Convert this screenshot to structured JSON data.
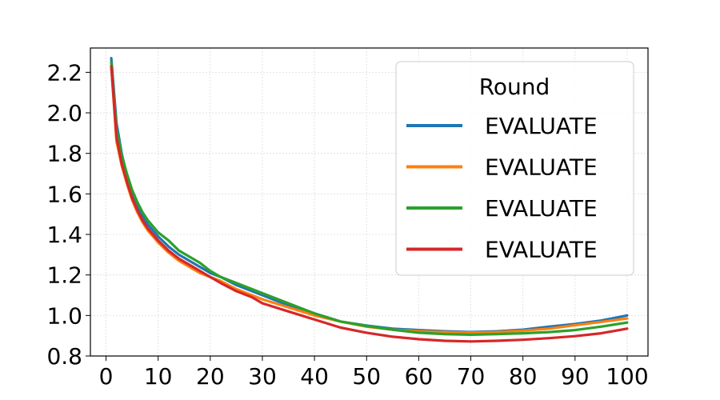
{
  "chart_data": {
    "type": "line",
    "title": "",
    "xlabel": "",
    "ylabel": "",
    "xlim": [
      -3,
      104
    ],
    "ylim": [
      0.8,
      2.32
    ],
    "xticks": [
      0,
      10,
      20,
      30,
      40,
      50,
      60,
      70,
      80,
      90,
      100
    ],
    "xtick_labels": [
      "0",
      "10",
      "20",
      "30",
      "40",
      "50",
      "60",
      "70",
      "80",
      "90",
      "100"
    ],
    "yticks": [
      0.8,
      1.0,
      1.2,
      1.4,
      1.6,
      1.8,
      2.0,
      2.2
    ],
    "ytick_labels": [
      "0.8",
      "1.0",
      "1.2",
      "1.4",
      "1.6",
      "1.8",
      "2.0",
      "2.2"
    ],
    "grid": true,
    "legend": {
      "title": "Round",
      "placement": "top-right"
    },
    "series": [
      {
        "name": "EVALUATE",
        "color": "#1f77b4",
        "x": [
          1,
          2,
          3,
          4,
          5,
          6,
          7,
          8,
          10,
          12,
          14,
          16,
          18,
          20,
          22,
          25,
          28,
          30,
          35,
          40,
          45,
          50,
          55,
          60,
          65,
          70,
          75,
          80,
          85,
          90,
          95,
          100
        ],
        "y": [
          2.27,
          1.95,
          1.8,
          1.69,
          1.6,
          1.54,
          1.49,
          1.45,
          1.39,
          1.34,
          1.3,
          1.27,
          1.24,
          1.21,
          1.19,
          1.15,
          1.12,
          1.1,
          1.05,
          1.01,
          0.97,
          0.95,
          0.935,
          0.928,
          0.922,
          0.918,
          0.922,
          0.93,
          0.945,
          0.958,
          0.975,
          1.0
        ]
      },
      {
        "name": "EVALUATE",
        "color": "#ff7f0e",
        "x": [
          1,
          2,
          3,
          4,
          5,
          6,
          7,
          8,
          10,
          12,
          14,
          16,
          18,
          20,
          22,
          25,
          28,
          30,
          35,
          40,
          45,
          50,
          55,
          60,
          65,
          70,
          75,
          80,
          85,
          90,
          95,
          100
        ],
        "y": [
          2.23,
          1.86,
          1.74,
          1.65,
          1.57,
          1.51,
          1.46,
          1.42,
          1.36,
          1.31,
          1.27,
          1.24,
          1.21,
          1.19,
          1.17,
          1.13,
          1.1,
          1.08,
          1.04,
          1.0,
          0.97,
          0.945,
          0.93,
          0.922,
          0.918,
          0.915,
          0.918,
          0.925,
          0.935,
          0.952,
          0.968,
          0.985
        ]
      },
      {
        "name": "EVALUATE",
        "color": "#2ca02c",
        "x": [
          1,
          2,
          3,
          4,
          5,
          6,
          7,
          8,
          10,
          12,
          14,
          16,
          18,
          20,
          22,
          25,
          28,
          30,
          35,
          40,
          45,
          50,
          55,
          60,
          65,
          70,
          75,
          80,
          85,
          90,
          95,
          100
        ],
        "y": [
          2.25,
          1.92,
          1.79,
          1.7,
          1.62,
          1.56,
          1.51,
          1.47,
          1.41,
          1.37,
          1.32,
          1.29,
          1.26,
          1.22,
          1.19,
          1.16,
          1.13,
          1.11,
          1.06,
          1.01,
          0.97,
          0.948,
          0.93,
          0.915,
          0.908,
          0.905,
          0.908,
          0.912,
          0.918,
          0.928,
          0.945,
          0.965
        ]
      },
      {
        "name": "EVALUATE",
        "color": "#d62728",
        "x": [
          1,
          2,
          3,
          4,
          5,
          6,
          7,
          8,
          10,
          12,
          14,
          16,
          18,
          20,
          22,
          25,
          28,
          30,
          35,
          40,
          45,
          50,
          55,
          60,
          65,
          70,
          75,
          80,
          85,
          90,
          95,
          100
        ],
        "y": [
          2.23,
          1.88,
          1.75,
          1.66,
          1.58,
          1.52,
          1.47,
          1.43,
          1.37,
          1.32,
          1.28,
          1.25,
          1.22,
          1.19,
          1.16,
          1.12,
          1.09,
          1.06,
          1.02,
          0.98,
          0.94,
          0.915,
          0.895,
          0.883,
          0.875,
          0.872,
          0.875,
          0.88,
          0.888,
          0.898,
          0.912,
          0.935
        ]
      }
    ]
  }
}
